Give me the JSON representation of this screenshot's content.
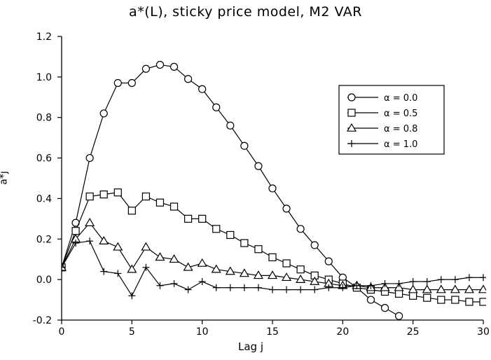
{
  "chart_data": {
    "type": "line",
    "title": "a*(L), sticky price model, M2 VAR",
    "xlabel": "Lag j",
    "ylabel": "a*j",
    "xlim": [
      0,
      30
    ],
    "ylim": [
      -0.2,
      1.2
    ],
    "xticks": [
      0,
      5,
      10,
      15,
      20,
      25,
      30
    ],
    "yticks": [
      -0.2,
      0.0,
      0.2,
      0.4,
      0.6,
      0.8,
      1.0,
      1.2
    ],
    "ytick_labels": [
      "-0.2",
      "0.0",
      "0.2",
      "0.4",
      "0.6",
      "0.8",
      "1.0",
      "1.2"
    ],
    "grid": false,
    "legend_position": "upper-right",
    "series": [
      {
        "name": "α = 0.0",
        "marker": "circle",
        "x": [
          0,
          1,
          2,
          3,
          4,
          5,
          6,
          7,
          8,
          9,
          10,
          11,
          12,
          13,
          14,
          15,
          16,
          17,
          18,
          19,
          20,
          21,
          22,
          23,
          24
        ],
        "values": [
          0.06,
          0.28,
          0.6,
          0.82,
          0.97,
          0.97,
          1.04,
          1.06,
          1.05,
          0.99,
          0.94,
          0.85,
          0.76,
          0.66,
          0.56,
          0.45,
          0.35,
          0.25,
          0.17,
          0.09,
          0.01,
          -0.04,
          -0.1,
          -0.14,
          -0.18
        ]
      },
      {
        "name": "α = 0.5",
        "marker": "square",
        "x": [
          0,
          1,
          2,
          3,
          4,
          5,
          6,
          7,
          8,
          9,
          10,
          11,
          12,
          13,
          14,
          15,
          16,
          17,
          18,
          19,
          20,
          21,
          22,
          23,
          24,
          25,
          26,
          27,
          28,
          29,
          30
        ],
        "values": [
          0.06,
          0.24,
          0.41,
          0.42,
          0.43,
          0.34,
          0.41,
          0.38,
          0.36,
          0.3,
          0.3,
          0.25,
          0.22,
          0.18,
          0.15,
          0.11,
          0.08,
          0.05,
          0.02,
          0.0,
          -0.02,
          -0.04,
          -0.05,
          -0.06,
          -0.07,
          -0.08,
          -0.09,
          -0.1,
          -0.1,
          -0.11,
          -0.11
        ]
      },
      {
        "name": "α = 0.8",
        "marker": "triangle",
        "x": [
          0,
          1,
          2,
          3,
          4,
          5,
          6,
          7,
          8,
          9,
          10,
          11,
          12,
          13,
          14,
          15,
          16,
          17,
          18,
          19,
          20,
          21,
          22,
          23,
          24,
          25,
          26,
          27,
          28,
          29,
          30
        ],
        "values": [
          0.06,
          0.2,
          0.28,
          0.19,
          0.16,
          0.05,
          0.16,
          0.11,
          0.1,
          0.06,
          0.08,
          0.05,
          0.04,
          0.03,
          0.02,
          0.02,
          0.01,
          0.0,
          -0.01,
          -0.02,
          -0.03,
          -0.03,
          -0.04,
          -0.04,
          -0.04,
          -0.05,
          -0.05,
          -0.05,
          -0.05,
          -0.05,
          -0.05
        ]
      },
      {
        "name": "α = 1.0",
        "marker": "plus",
        "x": [
          0,
          1,
          2,
          3,
          4,
          5,
          6,
          7,
          8,
          9,
          10,
          11,
          12,
          13,
          14,
          15,
          16,
          17,
          18,
          19,
          20,
          21,
          22,
          23,
          24,
          25,
          26,
          27,
          28,
          29,
          30
        ],
        "values": [
          0.06,
          0.18,
          0.19,
          0.04,
          0.03,
          -0.08,
          0.06,
          -0.03,
          -0.02,
          -0.05,
          -0.01,
          -0.04,
          -0.04,
          -0.04,
          -0.04,
          -0.05,
          -0.05,
          -0.05,
          -0.05,
          -0.04,
          -0.04,
          -0.03,
          -0.03,
          -0.02,
          -0.02,
          -0.01,
          -0.01,
          0.0,
          0.0,
          0.01,
          0.01
        ]
      }
    ]
  }
}
